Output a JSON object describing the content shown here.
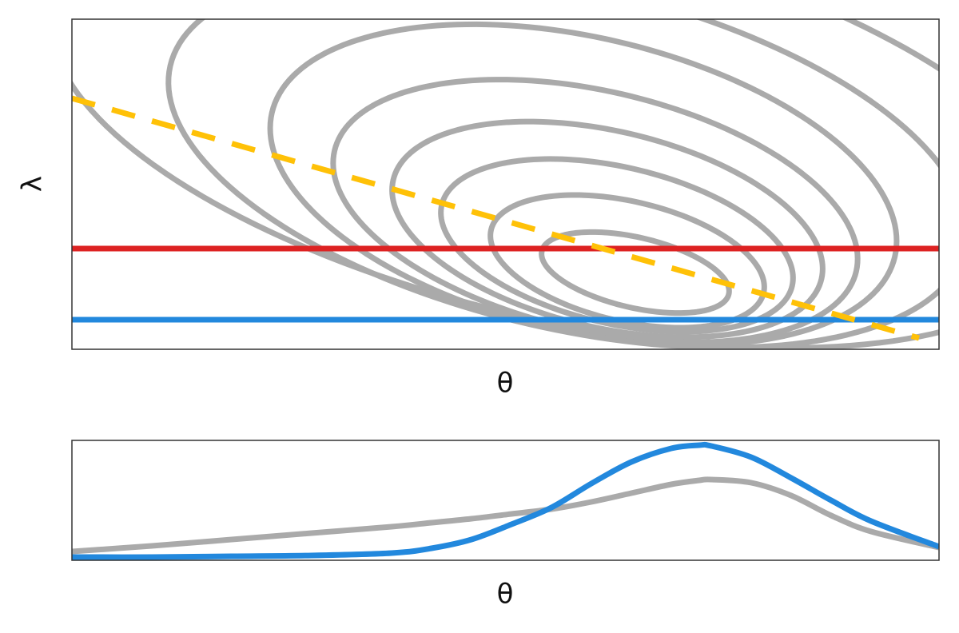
{
  "chart_data": [
    {
      "type": "contour",
      "xlabel": "θ",
      "ylabel": "λ",
      "xlim": [
        0,
        1085
      ],
      "ylim": [
        0,
        413
      ],
      "contour_color": "#aaaaaa",
      "contours": [
        {
          "cx": 705,
          "cy": 96,
          "rx": 120,
          "ry": 44,
          "angle": -13
        },
        {
          "cx": 695,
          "cy": 110,
          "rx": 175,
          "ry": 75,
          "angle": -13
        },
        {
          "cx": 682,
          "cy": 130,
          "rx": 225,
          "ry": 98,
          "angle": -13
        },
        {
          "cx": 670,
          "cy": 150,
          "rx": 275,
          "ry": 123,
          "angle": -13
        },
        {
          "cx": 655,
          "cy": 173,
          "rx": 335,
          "ry": 150,
          "angle": -13
        },
        {
          "cx": 640,
          "cy": 206,
          "rx": 400,
          "ry": 184,
          "angle": -13
        },
        {
          "cx": 620,
          "cy": 240,
          "rx": 510,
          "ry": 214,
          "angle": -13
        },
        {
          "cx": 610,
          "cy": 280,
          "rx": 650,
          "ry": 243,
          "angle": -13
        }
      ],
      "hlines": [
        {
          "color": "#dd2222",
          "y": 126
        },
        {
          "color": "#2288dd",
          "y": 37
        }
      ],
      "dashed": {
        "color": "#ffc107",
        "x": [
          0,
          1060
        ],
        "y": [
          314,
          14
        ]
      }
    },
    {
      "type": "line",
      "xlabel": "θ",
      "xlim": [
        0,
        1085
      ],
      "ylim": [
        0,
        150
      ],
      "x": [
        0,
        100,
        200,
        300,
        400,
        450,
        500,
        550,
        600,
        650,
        700,
        750,
        785,
        800,
        850,
        900,
        950,
        1000,
        1085
      ],
      "series": [
        {
          "color": "#aaaaaa",
          "values": [
            11,
            18,
            26,
            34,
            42,
            47,
            52,
            58,
            64,
            73,
            84,
            95,
            100,
            101,
            97,
            81,
            56,
            36,
            16
          ]
        },
        {
          "color": "#2288dd",
          "values": [
            4,
            4,
            5,
            6,
            9,
            15,
            26,
            45,
            66,
            96,
            123,
            140,
            144,
            143,
            129,
            103,
            75,
            49,
            17
          ]
        }
      ]
    }
  ]
}
